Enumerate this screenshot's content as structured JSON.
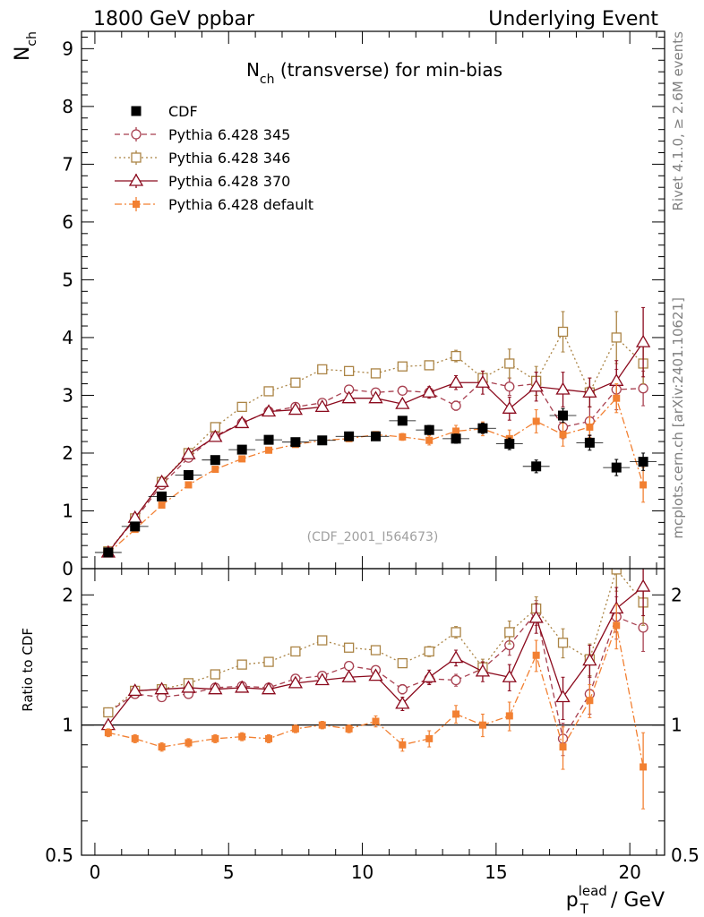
{
  "header": {
    "left": "1800 GeV ppbar",
    "right": "Underlying Event",
    "subtitle": "(CDF_2001_I564673)",
    "rivet": "Rivet 4.1.0, ≥ 2.6M events",
    "mcplots": "mcplots.cern.ch [arXiv:2401.10621]"
  },
  "chart_data": [
    {
      "type": "scatter",
      "title": "N",
      "title_sub": "ch",
      "title_rest": " (transverse) for min-bias",
      "ylabel": "N",
      "ylabel_sub": "ch",
      "xlabel_main": "p",
      "xlabel_sup": "lead",
      "xlabel_sub": "T",
      "xlabel_rest": " / GeV",
      "xlim": [
        -0.5,
        21.3
      ],
      "ylim": [
        0,
        9.3
      ],
      "x": [
        0.5,
        1.5,
        2.5,
        3.5,
        4.5,
        5.5,
        6.5,
        7.5,
        8.5,
        9.5,
        10.5,
        11.5,
        12.5,
        13.5,
        14.5,
        15.5,
        16.5,
        17.5,
        18.5,
        19.5,
        20.5
      ],
      "y_tick_labels": [
        "0",
        "1",
        "2",
        "3",
        "4",
        "5",
        "6",
        "7",
        "8",
        "9"
      ],
      "x_tick_labels": [
        "0",
        "5",
        "10",
        "15",
        "20"
      ],
      "legend_position": "top-left",
      "series": [
        {
          "name": "CDF",
          "color": "#000000",
          "style": "data",
          "values": [
            0.28,
            0.73,
            1.25,
            1.62,
            1.88,
            2.06,
            2.23,
            2.19,
            2.22,
            2.29,
            2.29,
            2.56,
            2.4,
            2.25,
            2.43,
            2.16,
            1.77,
            2.65,
            2.18,
            1.75,
            1.85
          ],
          "errors": [
            0.02,
            0.03,
            0.04,
            0.05,
            0.05,
            0.05,
            0.05,
            0.05,
            0.06,
            0.06,
            0.07,
            0.07,
            0.08,
            0.08,
            0.09,
            0.1,
            0.11,
            0.12,
            0.13,
            0.14,
            0.15
          ]
        },
        {
          "name": "Pythia 6.428 345",
          "color": "#a73f4f",
          "style": "circle-dashed",
          "values": [
            0.3,
            0.85,
            1.45,
            1.92,
            2.3,
            2.52,
            2.72,
            2.8,
            2.87,
            3.1,
            3.05,
            3.08,
            3.05,
            2.82,
            3.25,
            3.15,
            3.2,
            2.45,
            2.55,
            3.1,
            3.12
          ],
          "errors": [
            0.01,
            0.02,
            0.03,
            0.03,
            0.04,
            0.04,
            0.04,
            0.05,
            0.05,
            0.05,
            0.06,
            0.06,
            0.07,
            0.08,
            0.1,
            0.15,
            0.2,
            0.2,
            0.25,
            0.35,
            0.3
          ]
        },
        {
          "name": "Pythia 6.428 346",
          "color": "#ab8445",
          "style": "square-dotted",
          "values": [
            0.3,
            0.87,
            1.5,
            2.0,
            2.45,
            2.8,
            3.07,
            3.22,
            3.45,
            3.42,
            3.38,
            3.5,
            3.52,
            3.68,
            3.3,
            3.55,
            3.25,
            4.1,
            3.05,
            4.0,
            3.55
          ],
          "errors": [
            0.01,
            0.02,
            0.03,
            0.03,
            0.04,
            0.04,
            0.04,
            0.05,
            0.05,
            0.05,
            0.06,
            0.06,
            0.07,
            0.1,
            0.12,
            0.25,
            0.25,
            0.35,
            0.25,
            0.45,
            0.35
          ]
        },
        {
          "name": "Pythia 6.428 370",
          "color": "#8b0a1d",
          "style": "triangle-solid",
          "values": [
            0.28,
            0.88,
            1.5,
            1.98,
            2.28,
            2.52,
            2.72,
            2.75,
            2.8,
            2.95,
            2.95,
            2.85,
            3.05,
            3.22,
            3.22,
            2.77,
            3.15,
            3.1,
            3.05,
            3.25,
            3.92
          ],
          "errors": [
            0.01,
            0.02,
            0.03,
            0.03,
            0.04,
            0.04,
            0.04,
            0.05,
            0.05,
            0.05,
            0.06,
            0.07,
            0.1,
            0.12,
            0.2,
            0.2,
            0.25,
            0.3,
            0.25,
            0.35,
            0.6
          ]
        },
        {
          "name": "Pythia 6.428 default",
          "color": "#f28032",
          "style": "filled-square-dashdot",
          "values": [
            0.27,
            0.68,
            1.1,
            1.45,
            1.72,
            1.9,
            2.05,
            2.15,
            2.22,
            2.25,
            2.32,
            2.28,
            2.22,
            2.38,
            2.42,
            2.25,
            2.55,
            2.32,
            2.45,
            2.95,
            1.45
          ],
          "errors": [
            0.01,
            0.02,
            0.02,
            0.03,
            0.03,
            0.03,
            0.04,
            0.04,
            0.05,
            0.05,
            0.05,
            0.06,
            0.08,
            0.1,
            0.12,
            0.15,
            0.2,
            0.2,
            0.18,
            0.25,
            0.3
          ]
        }
      ]
    },
    {
      "type": "scatter",
      "ylabel": "Ratio to CDF",
      "xlim": [
        -0.5,
        21.3
      ],
      "ylim": [
        0.5,
        2.3
      ],
      "y_tick_labels": [
        "0.5",
        "1",
        "2"
      ],
      "reference_line": 1,
      "series": [
        {
          "name": "Pythia 6.428 345",
          "values": [
            1.07,
            1.18,
            1.16,
            1.18,
            1.22,
            1.23,
            1.22,
            1.28,
            1.3,
            1.37,
            1.34,
            1.21,
            1.28,
            1.27,
            1.35,
            1.53,
            1.82,
            0.93,
            1.18,
            1.78,
            1.68
          ],
          "errors": [
            0.02,
            0.02,
            0.02,
            0.02,
            0.02,
            0.02,
            0.02,
            0.02,
            0.02,
            0.02,
            0.03,
            0.03,
            0.03,
            0.04,
            0.05,
            0.08,
            0.12,
            0.08,
            0.12,
            0.2,
            0.2
          ]
        },
        {
          "name": "Pythia 6.428 346",
          "values": [
            1.07,
            1.2,
            1.21,
            1.25,
            1.31,
            1.38,
            1.4,
            1.48,
            1.57,
            1.51,
            1.49,
            1.39,
            1.48,
            1.64,
            1.36,
            1.64,
            1.86,
            1.55,
            1.42,
            2.29,
            1.92
          ],
          "errors": [
            0.02,
            0.02,
            0.02,
            0.02,
            0.02,
            0.02,
            0.02,
            0.02,
            0.03,
            0.03,
            0.03,
            0.03,
            0.04,
            0.05,
            0.06,
            0.1,
            0.12,
            0.12,
            0.12,
            0.25,
            0.22
          ]
        },
        {
          "name": "Pythia 6.428 370",
          "values": [
            1.0,
            1.2,
            1.21,
            1.22,
            1.21,
            1.22,
            1.21,
            1.25,
            1.27,
            1.29,
            1.3,
            1.12,
            1.29,
            1.43,
            1.33,
            1.29,
            1.77,
            1.16,
            1.41,
            1.86,
            2.09
          ],
          "errors": [
            0.02,
            0.02,
            0.02,
            0.02,
            0.02,
            0.02,
            0.02,
            0.02,
            0.02,
            0.03,
            0.03,
            0.04,
            0.05,
            0.06,
            0.07,
            0.09,
            0.14,
            0.13,
            0.12,
            0.22,
            0.3
          ]
        },
        {
          "name": "Pythia 6.428 default",
          "values": [
            0.96,
            0.93,
            0.89,
            0.91,
            0.93,
            0.94,
            0.93,
            0.98,
            1.0,
            0.98,
            1.02,
            0.9,
            0.93,
            1.06,
            1.0,
            1.05,
            1.45,
            0.89,
            1.14,
            1.7,
            0.8
          ],
          "errors": [
            0.02,
            0.02,
            0.02,
            0.02,
            0.02,
            0.02,
            0.02,
            0.02,
            0.02,
            0.02,
            0.03,
            0.03,
            0.04,
            0.05,
            0.06,
            0.08,
            0.12,
            0.1,
            0.1,
            0.2,
            0.16
          ]
        }
      ]
    }
  ]
}
